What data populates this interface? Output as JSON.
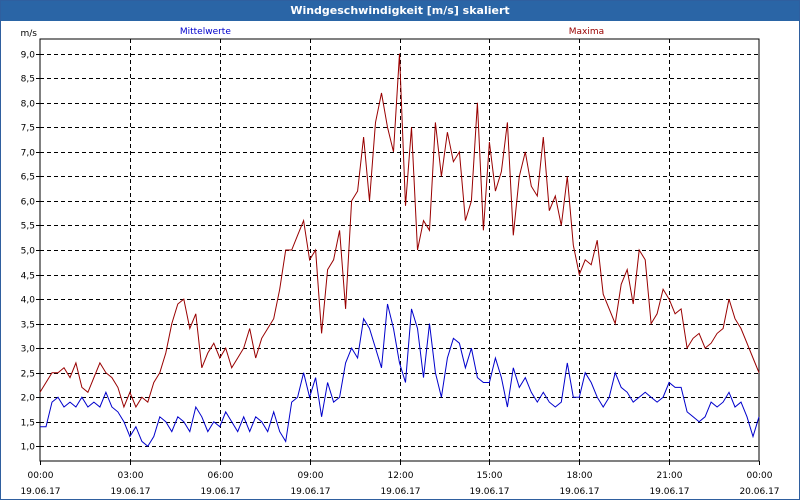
{
  "window": {
    "title": "Windgeschwindigkeit [m/s] skaliert"
  },
  "chart_data": {
    "type": "line",
    "title": "Windgeschwindigkeit [m/s] skaliert",
    "ylabel": "m/s",
    "xlabel": "",
    "ylim": [
      0.7,
      9.3
    ],
    "xlim": [
      0,
      24
    ],
    "grid": true,
    "y_ticks": [
      "1,0",
      "1,5",
      "2,0",
      "2,5",
      "3,0",
      "3,5",
      "4,0",
      "4,5",
      "5,0",
      "5,5",
      "6,0",
      "6,5",
      "7,0",
      "7,5",
      "8,0",
      "8,5",
      "9,0"
    ],
    "x_ticks": [
      {
        "time": "00:00",
        "date": "19.06.17"
      },
      {
        "time": "03:00",
        "date": "19.06.17"
      },
      {
        "time": "06:00",
        "date": "19.06.17"
      },
      {
        "time": "09:00",
        "date": "19.06.17"
      },
      {
        "time": "12:00",
        "date": "19.06.17"
      },
      {
        "time": "15:00",
        "date": "19.06.17"
      },
      {
        "time": "18:00",
        "date": "19.06.17"
      },
      {
        "time": "21:00",
        "date": "19.06.17"
      },
      {
        "time": "00:00",
        "date": "20.06.17"
      }
    ],
    "series": [
      {
        "name": "Mittelwerte",
        "color": "#0000cc",
        "values": [
          [
            0.0,
            1.4
          ],
          [
            0.2,
            1.4
          ],
          [
            0.4,
            1.9
          ],
          [
            0.6,
            2.0
          ],
          [
            0.8,
            1.8
          ],
          [
            1.0,
            1.9
          ],
          [
            1.2,
            1.8
          ],
          [
            1.4,
            2.0
          ],
          [
            1.6,
            1.8
          ],
          [
            1.8,
            1.9
          ],
          [
            2.0,
            1.8
          ],
          [
            2.2,
            2.1
          ],
          [
            2.4,
            1.8
          ],
          [
            2.6,
            1.7
          ],
          [
            2.8,
            1.5
          ],
          [
            3.0,
            1.2
          ],
          [
            3.2,
            1.4
          ],
          [
            3.4,
            1.1
          ],
          [
            3.6,
            1.0
          ],
          [
            3.8,
            1.2
          ],
          [
            4.0,
            1.6
          ],
          [
            4.2,
            1.5
          ],
          [
            4.4,
            1.3
          ],
          [
            4.6,
            1.6
          ],
          [
            4.8,
            1.5
          ],
          [
            5.0,
            1.3
          ],
          [
            5.2,
            1.8
          ],
          [
            5.4,
            1.6
          ],
          [
            5.6,
            1.3
          ],
          [
            5.8,
            1.5
          ],
          [
            6.0,
            1.4
          ],
          [
            6.2,
            1.7
          ],
          [
            6.4,
            1.5
          ],
          [
            6.6,
            1.3
          ],
          [
            6.8,
            1.6
          ],
          [
            7.0,
            1.3
          ],
          [
            7.2,
            1.6
          ],
          [
            7.4,
            1.5
          ],
          [
            7.6,
            1.3
          ],
          [
            7.8,
            1.7
          ],
          [
            8.0,
            1.3
          ],
          [
            8.2,
            1.1
          ],
          [
            8.4,
            1.9
          ],
          [
            8.6,
            2.0
          ],
          [
            8.8,
            2.5
          ],
          [
            9.0,
            2.0
          ],
          [
            9.2,
            2.4
          ],
          [
            9.4,
            1.6
          ],
          [
            9.6,
            2.3
          ],
          [
            9.8,
            1.9
          ],
          [
            10.0,
            2.0
          ],
          [
            10.2,
            2.7
          ],
          [
            10.4,
            3.0
          ],
          [
            10.6,
            2.8
          ],
          [
            10.8,
            3.6
          ],
          [
            11.0,
            3.4
          ],
          [
            11.2,
            3.0
          ],
          [
            11.4,
            2.6
          ],
          [
            11.6,
            3.9
          ],
          [
            11.8,
            3.4
          ],
          [
            12.0,
            2.7
          ],
          [
            12.2,
            2.3
          ],
          [
            12.4,
            3.8
          ],
          [
            12.6,
            3.4
          ],
          [
            12.8,
            2.4
          ],
          [
            13.0,
            3.5
          ],
          [
            13.2,
            2.5
          ],
          [
            13.4,
            2.0
          ],
          [
            13.6,
            2.8
          ],
          [
            13.8,
            3.2
          ],
          [
            14.0,
            3.1
          ],
          [
            14.2,
            2.6
          ],
          [
            14.4,
            3.0
          ],
          [
            14.6,
            2.4
          ],
          [
            14.8,
            2.3
          ],
          [
            15.0,
            2.3
          ],
          [
            15.2,
            2.8
          ],
          [
            15.4,
            2.4
          ],
          [
            15.6,
            1.8
          ],
          [
            15.8,
            2.6
          ],
          [
            16.0,
            2.2
          ],
          [
            16.2,
            2.4
          ],
          [
            16.4,
            2.1
          ],
          [
            16.6,
            1.9
          ],
          [
            16.8,
            2.1
          ],
          [
            17.0,
            1.9
          ],
          [
            17.2,
            1.8
          ],
          [
            17.4,
            1.9
          ],
          [
            17.6,
            2.7
          ],
          [
            17.8,
            2.0
          ],
          [
            18.0,
            2.0
          ],
          [
            18.2,
            2.5
          ],
          [
            18.4,
            2.3
          ],
          [
            18.6,
            2.0
          ],
          [
            18.8,
            1.8
          ],
          [
            19.0,
            2.0
          ],
          [
            19.2,
            2.5
          ],
          [
            19.4,
            2.2
          ],
          [
            19.6,
            2.1
          ],
          [
            19.8,
            1.9
          ],
          [
            20.0,
            2.0
          ],
          [
            20.2,
            2.1
          ],
          [
            20.4,
            2.0
          ],
          [
            20.6,
            1.9
          ],
          [
            20.8,
            2.0
          ],
          [
            21.0,
            2.3
          ],
          [
            21.2,
            2.2
          ],
          [
            21.4,
            2.2
          ],
          [
            21.6,
            1.7
          ],
          [
            21.8,
            1.6
          ],
          [
            22.0,
            1.5
          ],
          [
            22.2,
            1.6
          ],
          [
            22.4,
            1.9
          ],
          [
            22.6,
            1.8
          ],
          [
            22.8,
            1.9
          ],
          [
            23.0,
            2.1
          ],
          [
            23.2,
            1.8
          ],
          [
            23.4,
            1.9
          ],
          [
            23.6,
            1.6
          ],
          [
            23.8,
            1.2
          ],
          [
            24.0,
            1.6
          ]
        ]
      },
      {
        "name": "Maxima",
        "color": "#990000",
        "values": [
          [
            0.0,
            2.1
          ],
          [
            0.2,
            2.3
          ],
          [
            0.4,
            2.5
          ],
          [
            0.6,
            2.5
          ],
          [
            0.8,
            2.6
          ],
          [
            1.0,
            2.4
          ],
          [
            1.2,
            2.7
          ],
          [
            1.4,
            2.2
          ],
          [
            1.6,
            2.1
          ],
          [
            1.8,
            2.4
          ],
          [
            2.0,
            2.7
          ],
          [
            2.2,
            2.5
          ],
          [
            2.4,
            2.4
          ],
          [
            2.6,
            2.2
          ],
          [
            2.8,
            1.8
          ],
          [
            3.0,
            2.1
          ],
          [
            3.2,
            1.8
          ],
          [
            3.4,
            2.0
          ],
          [
            3.6,
            1.9
          ],
          [
            3.8,
            2.3
          ],
          [
            4.0,
            2.5
          ],
          [
            4.2,
            2.9
          ],
          [
            4.4,
            3.5
          ],
          [
            4.6,
            3.9
          ],
          [
            4.8,
            4.0
          ],
          [
            5.0,
            3.4
          ],
          [
            5.2,
            3.7
          ],
          [
            5.4,
            2.6
          ],
          [
            5.6,
            2.9
          ],
          [
            5.8,
            3.1
          ],
          [
            6.0,
            2.8
          ],
          [
            6.2,
            3.0
          ],
          [
            6.4,
            2.6
          ],
          [
            6.6,
            2.8
          ],
          [
            6.8,
            3.0
          ],
          [
            7.0,
            3.4
          ],
          [
            7.2,
            2.8
          ],
          [
            7.4,
            3.2
          ],
          [
            7.6,
            3.4
          ],
          [
            7.8,
            3.6
          ],
          [
            8.0,
            4.2
          ],
          [
            8.2,
            5.0
          ],
          [
            8.4,
            5.0
          ],
          [
            8.6,
            5.3
          ],
          [
            8.8,
            5.6
          ],
          [
            9.0,
            4.8
          ],
          [
            9.2,
            5.0
          ],
          [
            9.4,
            3.3
          ],
          [
            9.6,
            4.6
          ],
          [
            9.8,
            4.8
          ],
          [
            10.0,
            5.4
          ],
          [
            10.2,
            3.8
          ],
          [
            10.4,
            6.0
          ],
          [
            10.6,
            6.2
          ],
          [
            10.8,
            7.3
          ],
          [
            11.0,
            6.0
          ],
          [
            11.2,
            7.6
          ],
          [
            11.4,
            8.2
          ],
          [
            11.6,
            7.5
          ],
          [
            11.8,
            7.0
          ],
          [
            12.0,
            9.0
          ],
          [
            12.2,
            5.9
          ],
          [
            12.4,
            7.5
          ],
          [
            12.6,
            5.0
          ],
          [
            12.8,
            5.6
          ],
          [
            13.0,
            5.4
          ],
          [
            13.2,
            7.6
          ],
          [
            13.4,
            6.5
          ],
          [
            13.6,
            7.4
          ],
          [
            13.8,
            6.8
          ],
          [
            14.0,
            7.0
          ],
          [
            14.2,
            5.6
          ],
          [
            14.4,
            6.0
          ],
          [
            14.6,
            8.0
          ],
          [
            14.8,
            5.4
          ],
          [
            15.0,
            7.2
          ],
          [
            15.2,
            6.2
          ],
          [
            15.4,
            6.6
          ],
          [
            15.6,
            7.6
          ],
          [
            15.8,
            5.3
          ],
          [
            16.0,
            6.5
          ],
          [
            16.2,
            7.0
          ],
          [
            16.4,
            6.3
          ],
          [
            16.6,
            6.1
          ],
          [
            16.8,
            7.3
          ],
          [
            17.0,
            5.8
          ],
          [
            17.2,
            6.1
          ],
          [
            17.4,
            5.5
          ],
          [
            17.6,
            6.5
          ],
          [
            17.8,
            5.1
          ],
          [
            18.0,
            4.5
          ],
          [
            18.2,
            4.8
          ],
          [
            18.4,
            4.7
          ],
          [
            18.6,
            5.2
          ],
          [
            18.8,
            4.1
          ],
          [
            19.0,
            3.8
          ],
          [
            19.2,
            3.5
          ],
          [
            19.4,
            4.3
          ],
          [
            19.6,
            4.6
          ],
          [
            19.8,
            3.9
          ],
          [
            20.0,
            5.0
          ],
          [
            20.2,
            4.8
          ],
          [
            20.4,
            3.5
          ],
          [
            20.6,
            3.7
          ],
          [
            20.8,
            4.2
          ],
          [
            21.0,
            4.0
          ],
          [
            21.2,
            3.7
          ],
          [
            21.4,
            3.8
          ],
          [
            21.6,
            3.0
          ],
          [
            21.8,
            3.2
          ],
          [
            22.0,
            3.3
          ],
          [
            22.2,
            3.0
          ],
          [
            22.4,
            3.1
          ],
          [
            22.6,
            3.3
          ],
          [
            22.8,
            3.4
          ],
          [
            23.0,
            4.0
          ],
          [
            23.2,
            3.6
          ],
          [
            23.4,
            3.4
          ],
          [
            23.6,
            3.1
          ],
          [
            23.8,
            2.8
          ],
          [
            24.0,
            2.5
          ]
        ]
      }
    ]
  }
}
